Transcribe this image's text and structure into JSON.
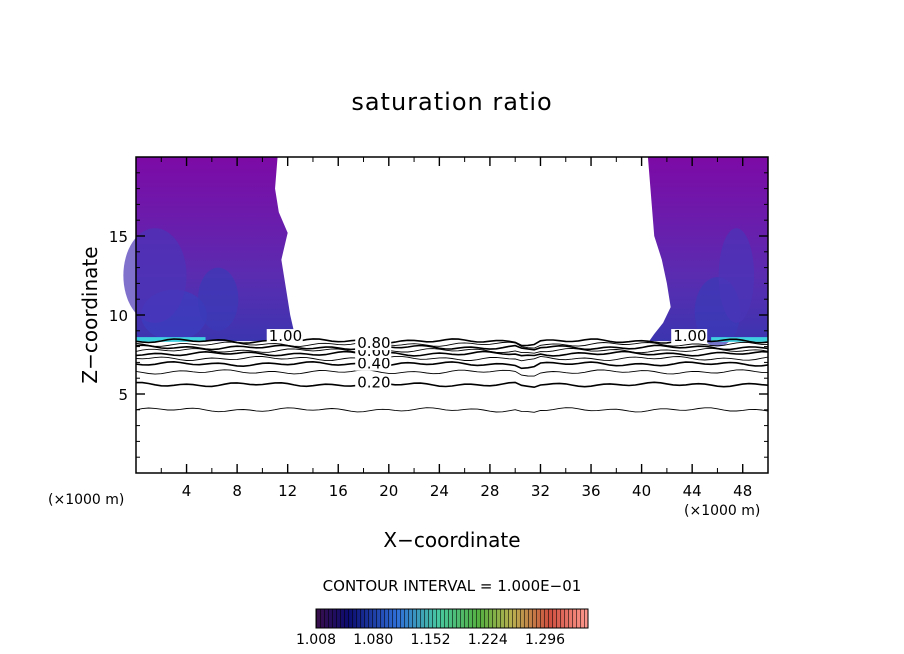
{
  "chart_data": {
    "type": "contour",
    "title": "saturation ratio",
    "xlabel": "X−coordinate",
    "ylabel": "Z−coordinate",
    "x_unit_left": "(×1000 m)",
    "x_unit_right": "(×1000 m)",
    "xlim": [
      0,
      50
    ],
    "ylim": [
      0,
      20
    ],
    "x_ticks": [
      4,
      8,
      12,
      16,
      20,
      24,
      28,
      32,
      36,
      40,
      44,
      48
    ],
    "y_ticks": [
      5,
      10,
      15
    ],
    "contour_interval_text": "CONTOUR INTERVAL = 1.000E−01",
    "colorbar_labels": [
      "1.008",
      "1.080",
      "1.152",
      "1.224",
      "1.296"
    ],
    "colorbar_range": [
      1.008,
      1.35
    ],
    "contour_lines": [
      {
        "level": 0.1,
        "z": 4.0,
        "label": ""
      },
      {
        "level": 0.2,
        "z": 5.6,
        "label": "0.20"
      },
      {
        "level": 0.3,
        "z": 6.4,
        "label": ""
      },
      {
        "level": 0.4,
        "z": 6.9,
        "label": "0.40"
      },
      {
        "level": 0.5,
        "z": 7.25,
        "label": ""
      },
      {
        "level": 0.6,
        "z": 7.55,
        "label": "0.60"
      },
      {
        "level": 0.7,
        "z": 7.75,
        "label": ""
      },
      {
        "level": 0.8,
        "z": 7.95,
        "label": "0.80"
      },
      {
        "level": 0.9,
        "z": 8.15,
        "label": ""
      },
      {
        "level": 1.0,
        "z": 8.35,
        "label": "1.00"
      }
    ],
    "contour_label_positions": [
      {
        "text": "0.20",
        "x": 17.5,
        "z": 5.4
      },
      {
        "text": "0.40",
        "x": 17.5,
        "z": 6.6
      },
      {
        "text": "0.60",
        "x": 17.5,
        "z": 7.4
      },
      {
        "text": "0.80",
        "x": 17.5,
        "z": 7.9
      },
      {
        "text": "1.00",
        "x": 10.5,
        "z": 8.35
      },
      {
        "text": "1.00",
        "x": 42.5,
        "z": 8.35
      }
    ],
    "shaded_regions": [
      {
        "name": "left",
        "x_range": [
          0,
          12.5
        ],
        "z_range": [
          8.3,
          20
        ],
        "min_value": 1.008
      },
      {
        "name": "right",
        "x_range": [
          40.5,
          50
        ],
        "z_range": [
          8.3,
          20
        ],
        "min_value": 1.008
      }
    ],
    "grid": false
  }
}
